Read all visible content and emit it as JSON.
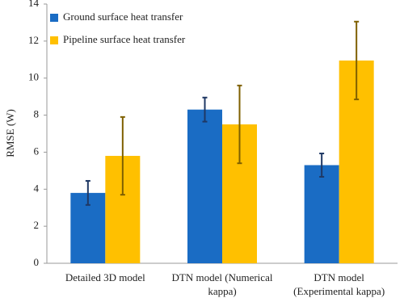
{
  "chart_data": {
    "type": "bar",
    "ylabel": "RMSE (W)",
    "categories": [
      [
        "Detailed 3D model"
      ],
      [
        "DTN model (Numerical",
        "kappa)"
      ],
      [
        "DTN model",
        "(Experimental kappa)"
      ]
    ],
    "series": [
      {
        "name": "Ground surface heat transfer",
        "color": "#1a6cc4",
        "error_color": "#1f3864",
        "values": [
          3.8,
          8.3,
          5.3
        ],
        "errors": [
          0.65,
          0.65,
          0.63
        ]
      },
      {
        "name": "Pipeline surface heat transfer",
        "color": "#ffc000",
        "error_color": "#7f6000",
        "values": [
          5.8,
          7.5,
          10.95
        ],
        "errors": [
          2.1,
          2.1,
          2.1
        ]
      }
    ],
    "ylim": [
      0,
      14
    ],
    "yticks": [
      0,
      2,
      4,
      6,
      8,
      10,
      12,
      14
    ],
    "legend": "upper-left",
    "grid": false
  }
}
